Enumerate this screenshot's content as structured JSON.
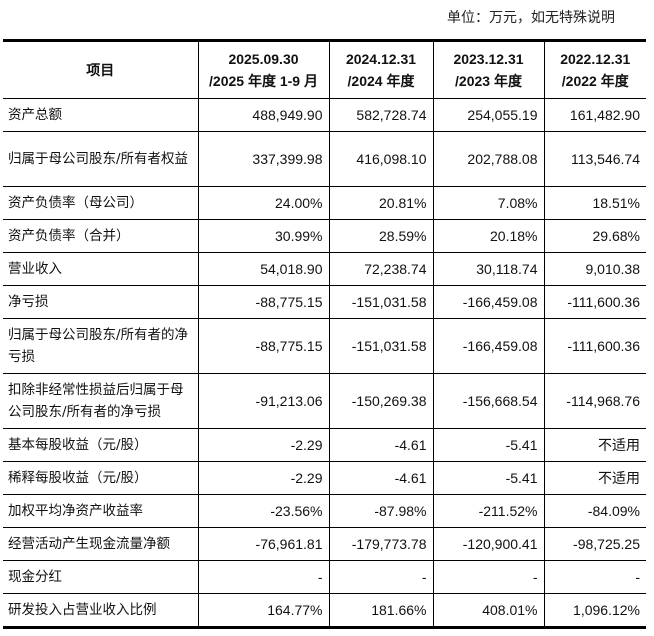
{
  "unit_note": "单位：万元，如无特殊说明",
  "table": {
    "headers": [
      "项目",
      [
        "2025.09.30",
        "/2025 年度 1-9 月"
      ],
      [
        "2024.12.31",
        "/2024 年度"
      ],
      [
        "2023.12.31",
        "/2023 年度"
      ],
      [
        "2022.12.31",
        "/2022 年度"
      ]
    ],
    "rows": [
      {
        "label": "资产总额",
        "values": [
          "488,949.90",
          "582,728.74",
          "254,055.19",
          "161,482.90"
        ]
      },
      {
        "label": "归属于母公司股东/所有者权益",
        "values": [
          "337,399.98",
          "416,098.10",
          "202,788.08",
          "113,546.74"
        ]
      },
      {
        "label": "资产负债率（母公司）",
        "values": [
          "24.00%",
          "20.81%",
          "7.08%",
          "18.51%"
        ]
      },
      {
        "label": "资产负债率（合并）",
        "values": [
          "30.99%",
          "28.59%",
          "20.18%",
          "29.68%"
        ]
      },
      {
        "label": "营业收入",
        "values": [
          "54,018.90",
          "72,238.74",
          "30,118.74",
          "9,010.38"
        ]
      },
      {
        "label": "净亏损",
        "values": [
          "-88,775.15",
          "-151,031.58",
          "-166,459.08",
          "-111,600.36"
        ]
      },
      {
        "label": "归属于母公司股东/所有者的净亏损",
        "values": [
          "-88,775.15",
          "-151,031.58",
          "-166,459.08",
          "-111,600.36"
        ]
      },
      {
        "label": "扣除非经常性损益后归属于母公司股东/所有者的净亏损",
        "values": [
          "-91,213.06",
          "-150,269.38",
          "-156,668.54",
          "-114,968.76"
        ]
      },
      {
        "label": "基本每股收益（元/股）",
        "values": [
          "-2.29",
          "-4.61",
          "-5.41",
          "不适用"
        ]
      },
      {
        "label": "稀释每股收益（元/股）",
        "values": [
          "-2.29",
          "-4.61",
          "-5.41",
          "不适用"
        ]
      },
      {
        "label": "加权平均净资产收益率",
        "values": [
          "-23.56%",
          "-87.98%",
          "-211.52%",
          "-84.09%"
        ]
      },
      {
        "label": "经营活动产生现金流量净额",
        "values": [
          "-76,961.81",
          "-179,773.78",
          "-120,900.41",
          "-98,725.25"
        ]
      },
      {
        "label": "现金分红",
        "values": [
          "-",
          "-",
          "-",
          "-"
        ]
      },
      {
        "label": "研发投入占营业收入比例",
        "values": [
          "164.77%",
          "181.66%",
          "408.01%",
          "1,096.12%"
        ]
      }
    ]
  }
}
